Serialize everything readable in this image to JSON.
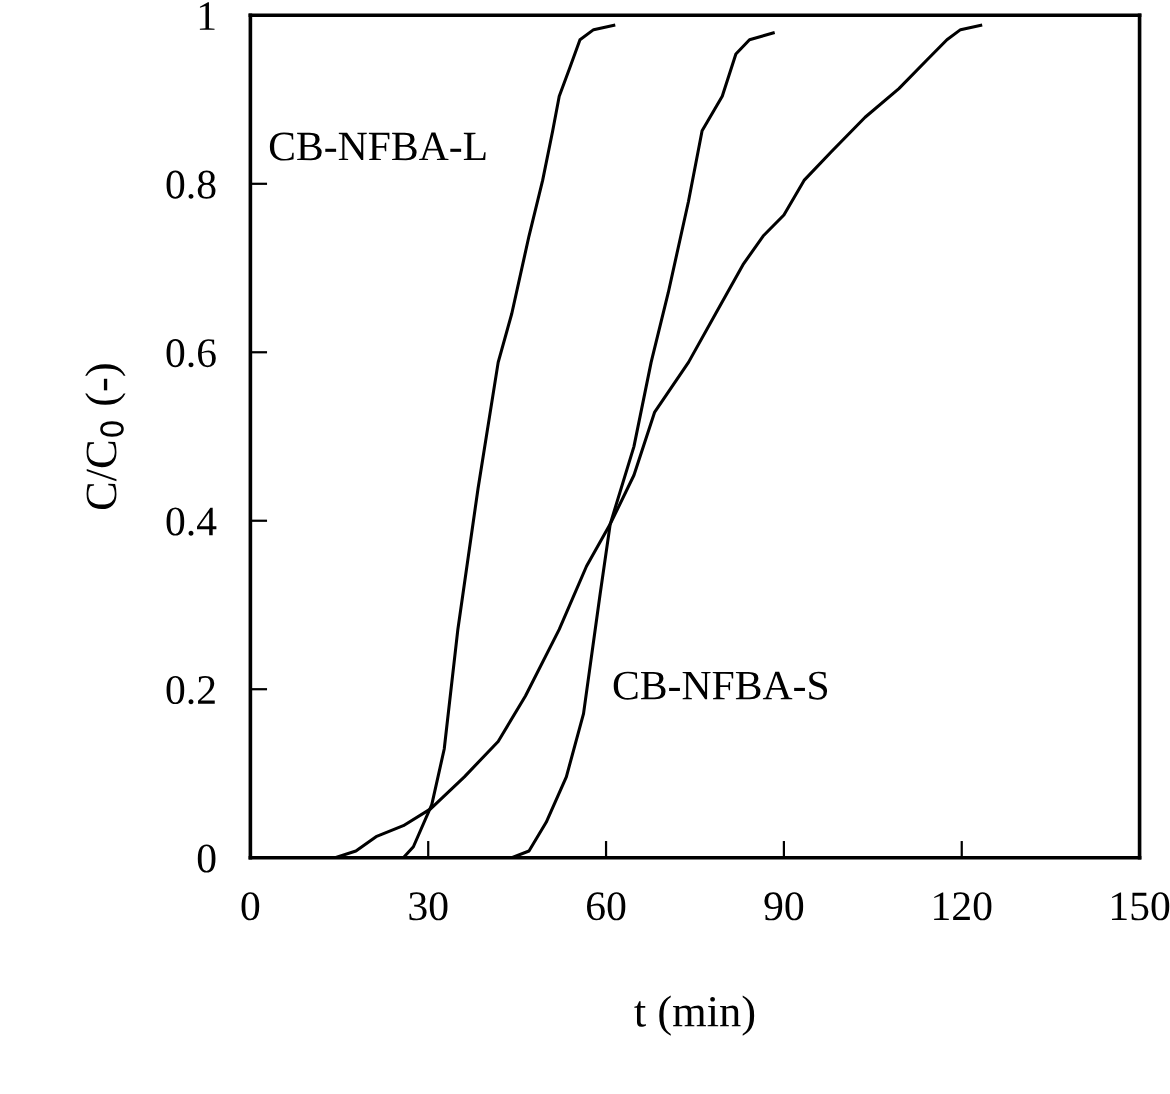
{
  "chart_data": {
    "type": "line",
    "xlabel": "t (min)",
    "ylabel": "C/C$_{0}$ (-)",
    "xlim": [
      0,
      150
    ],
    "xticks": [
      0,
      30,
      60,
      90,
      120,
      150
    ],
    "ylim": [
      0,
      1
    ],
    "yticks": [
      0,
      0.2,
      0.4,
      0.6,
      0.8,
      1
    ],
    "grid": false,
    "legend": false,
    "marker": "none",
    "line_style": "solid",
    "series": [
      {
        "name": "CB-NFBA-L",
        "color": "#000000",
        "x": [
          25.8,
          27.5,
          30.6,
          32.7,
          35.0,
          38.4,
          41.8,
          44.1,
          47.0,
          49.3,
          51.0,
          52.1,
          53.9,
          55.6,
          57.9,
          61.3
        ],
        "values": [
          0,
          0.013,
          0.063,
          0.129,
          0.271,
          0.438,
          0.588,
          0.646,
          0.738,
          0.804,
          0.863,
          0.904,
          0.938,
          0.971,
          0.983,
          0.988
        ]
      },
      {
        "name": "CB-NFBA-S",
        "color": "#000000",
        "x": [
          44.1,
          47.0,
          49.9,
          53.3,
          56.2,
          59.0,
          60.7,
          64.7,
          67.6,
          70.5,
          73.9,
          76.2,
          79.6,
          81.9,
          84.2,
          88.2
        ],
        "values": [
          0,
          0.008,
          0.042,
          0.096,
          0.171,
          0.313,
          0.396,
          0.488,
          0.588,
          0.671,
          0.779,
          0.863,
          0.904,
          0.954,
          0.971,
          0.979
        ]
      },
      {
        "color": "#000000",
        "x": [
          14.3,
          17.8,
          21.2,
          25.8,
          30.4,
          36.1,
          41.8,
          46.4,
          52.1,
          56.7,
          60.7,
          64.7,
          68.2,
          73.9,
          78.5,
          83.1,
          86.5,
          90.0,
          93.4,
          98.0,
          103.7,
          109.4,
          114.0,
          117.5,
          119.8,
          123.2
        ],
        "values": [
          0,
          0.008,
          0.025,
          0.038,
          0.058,
          0.096,
          0.138,
          0.192,
          0.271,
          0.346,
          0.396,
          0.454,
          0.529,
          0.588,
          0.646,
          0.704,
          0.738,
          0.763,
          0.804,
          0.838,
          0.879,
          0.913,
          0.946,
          0.971,
          0.983,
          0.988
        ]
      }
    ]
  }
}
